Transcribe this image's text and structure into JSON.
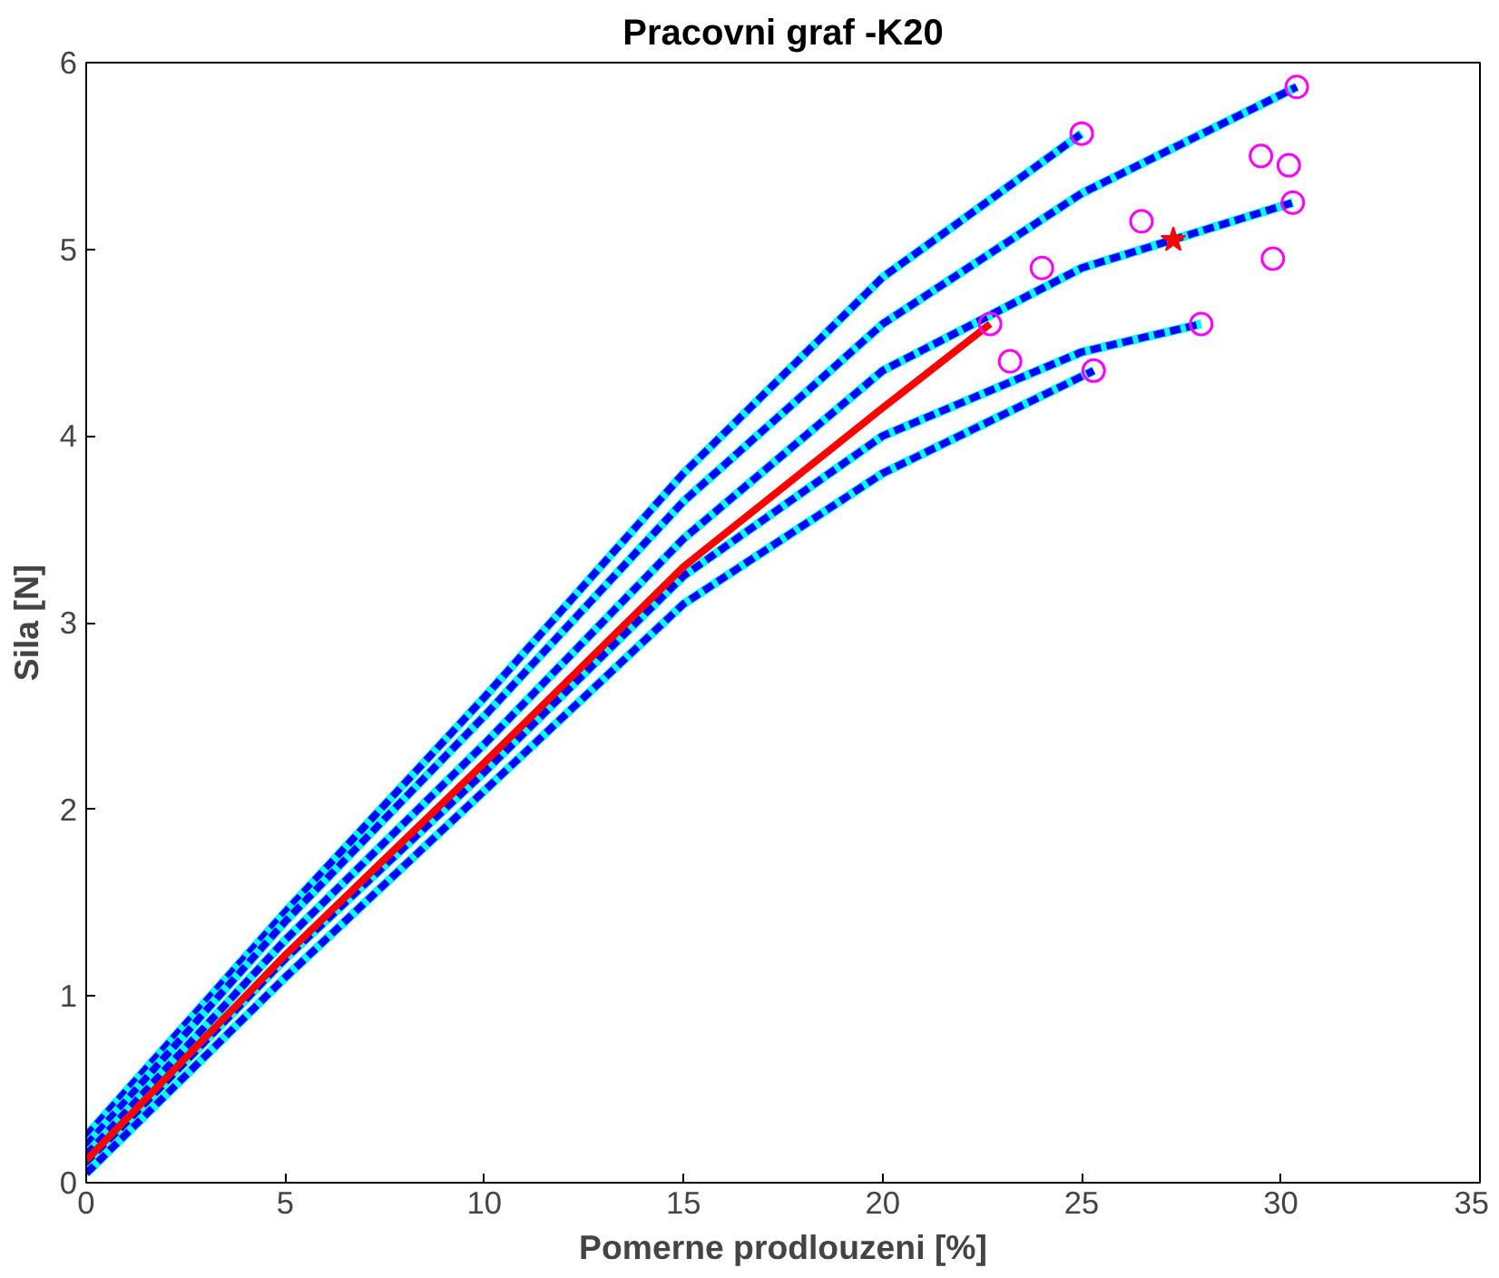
{
  "chart_data": {
    "type": "line",
    "title": "Pracovni graf -K20",
    "xlabel": "Pomerne prodlouzeni [%]",
    "ylabel": "Sila [N]",
    "xlim": [
      0,
      35
    ],
    "ylim": [
      0,
      6
    ],
    "xticks": [
      0,
      5,
      10,
      15,
      20,
      25,
      30,
      35
    ],
    "yticks": [
      0,
      1,
      2,
      3,
      4,
      5,
      6
    ],
    "grid": false,
    "series": [
      {
        "color": "#0000ff",
        "line_style": "dashed",
        "x": [
          0,
          5,
          10,
          15,
          20,
          25
        ],
        "values": [
          0.25,
          1.45,
          2.6,
          3.8,
          4.85,
          5.62
        ]
      },
      {
        "color": "#0000ff",
        "line_style": "dashed",
        "x": [
          0,
          5,
          10,
          15,
          20,
          25,
          30.4
        ],
        "values": [
          0.2,
          1.4,
          2.5,
          3.65,
          4.6,
          5.3,
          5.87
        ]
      },
      {
        "color": "#0000ff",
        "line_style": "dashed",
        "x": [
          0,
          5,
          10,
          15,
          20,
          25,
          30.3
        ],
        "values": [
          0.15,
          1.3,
          2.35,
          3.45,
          4.35,
          4.9,
          5.25
        ]
      },
      {
        "color": "#0000ff",
        "line_style": "dashed",
        "x": [
          0,
          5,
          10,
          15,
          20,
          25,
          28
        ],
        "values": [
          0.1,
          1.2,
          2.2,
          3.25,
          4.0,
          4.45,
          4.6
        ]
      },
      {
        "color": "#0000ff",
        "line_style": "dashed",
        "x": [
          0,
          5,
          10,
          15,
          20,
          25.3
        ],
        "values": [
          0.05,
          1.1,
          2.1,
          3.1,
          3.8,
          4.35
        ]
      },
      {
        "color": "#ff0000",
        "line_style": "solid",
        "x": [
          0,
          5,
          10,
          15,
          20,
          22.7
        ],
        "values": [
          0.12,
          1.22,
          2.25,
          3.3,
          4.15,
          4.6
        ]
      },
      {
        "type": "scatter",
        "color": "#ff00ff",
        "marker": "circle",
        "x": [
          25,
          30.4,
          30.3,
          28,
          25.3,
          22.7,
          29.5,
          30.2,
          29.8,
          26.5,
          24,
          23.2
        ],
        "values": [
          5.62,
          5.87,
          5.25,
          4.6,
          4.35,
          4.6,
          5.5,
          5.45,
          4.95,
          5.15,
          4.9,
          4.4
        ]
      },
      {
        "type": "scatter",
        "color": "#ff0000",
        "marker": "star",
        "x": [
          27.3
        ],
        "values": [
          5.05
        ]
      }
    ]
  }
}
